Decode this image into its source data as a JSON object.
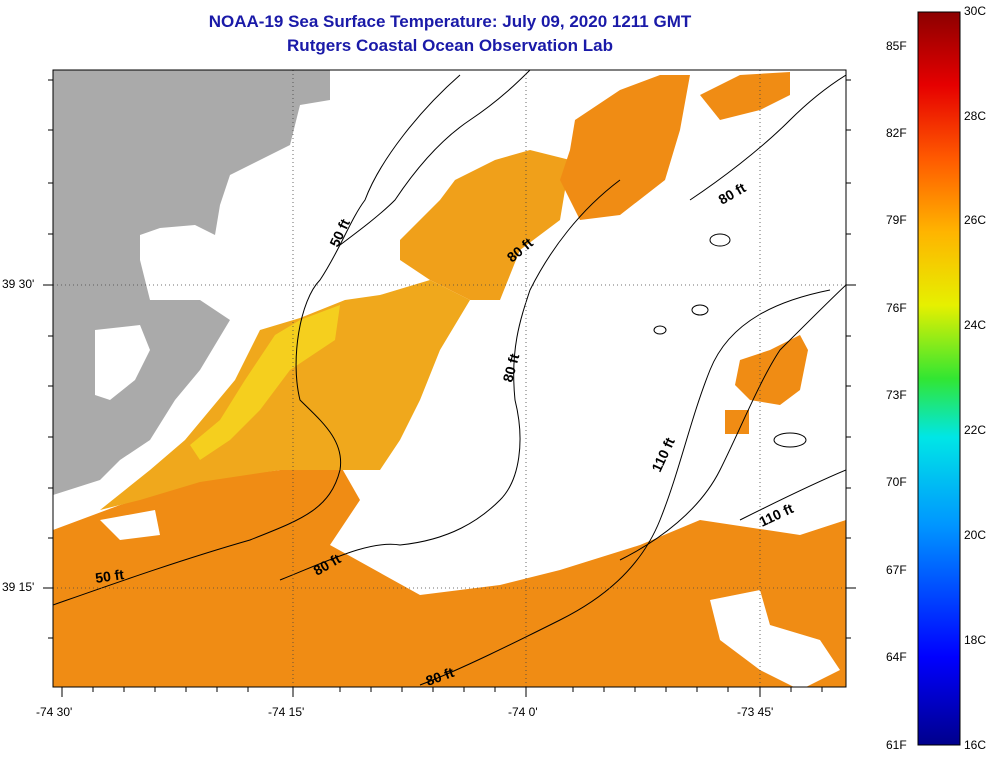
{
  "title": {
    "line1": "NOAA-19 Sea Surface Temperature:  July 09, 2020 1211 GMT",
    "line2": "Rutgers Coastal Ocean Observation Lab"
  },
  "map": {
    "lon_ticks": [
      "-74 30'",
      "-74 15'",
      "-74 0'",
      "-73 45'"
    ],
    "lat_ticks": [
      "39 30'",
      "39 15'"
    ],
    "contour_labels": [
      "50 ft",
      "50 ft",
      "80 ft",
      "80 ft",
      "80 ft",
      "80 ft",
      "80 ft",
      "110 ft",
      "110 ft"
    ],
    "colors": {
      "land": "#aaaaaa",
      "cloud": "#ffffff",
      "sst_warm": "#f08c14",
      "sst_mid": "#f0b41e",
      "sst_cool": "#f5d21e"
    }
  },
  "colorbar": {
    "fahrenheit": [
      "85F",
      "82F",
      "79F",
      "76F",
      "73F",
      "70F",
      "67F",
      "64F",
      "61F"
    ],
    "celsius": [
      "30C",
      "28C",
      "26C",
      "24C",
      "22C",
      "20C",
      "18C",
      "16C"
    ]
  }
}
